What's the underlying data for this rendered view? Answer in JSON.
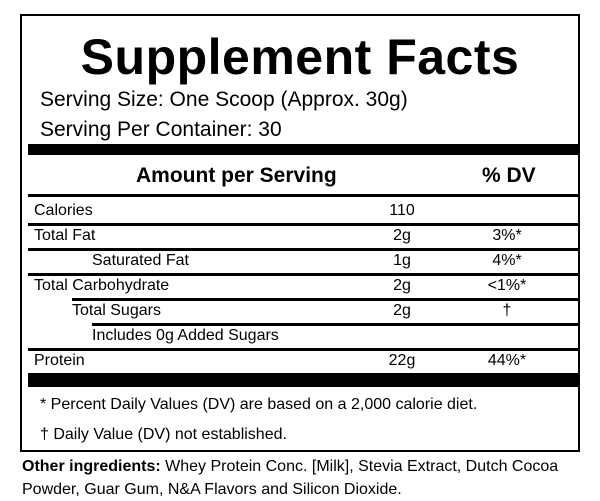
{
  "header": {
    "title": "Supplement Facts",
    "serving_size": "Serving Size:  One Scoop (Approx. 30g)",
    "servings_per_container": "Serving Per Container: 30"
  },
  "table": {
    "columns": [
      "Amount per Serving",
      "% DV"
    ],
    "rows": [
      {
        "name": "Calories",
        "amount": "110"
      },
      {
        "name": "Total Fat",
        "amount": "2g",
        "dv": "3%*"
      },
      {
        "name": "Saturated Fat",
        "amount": "1g",
        "dv": "4%*"
      },
      {
        "name": "Total Carbohydrate",
        "amount": "2g",
        "dv": "<1%*"
      },
      {
        "name": "Total Sugars",
        "amount": "2g",
        "dv": "†"
      },
      {
        "name": "Includes 0g Added Sugars"
      },
      {
        "name": "Protein",
        "amount": "22g",
        "dv": "44%*"
      }
    ]
  },
  "footnotes": [
    "* Percent Daily Values (DV) are based on a 2,000 calorie diet.",
    "† Daily Value (DV) not established."
  ],
  "other_ingredients": {
    "label": "Other ingredients:",
    "text": "Whey Protein Conc. [Milk], Stevia Extract, Dutch Cocoa Powder, Guar Gum, N&A Flavors and Silicon Dioxide."
  }
}
